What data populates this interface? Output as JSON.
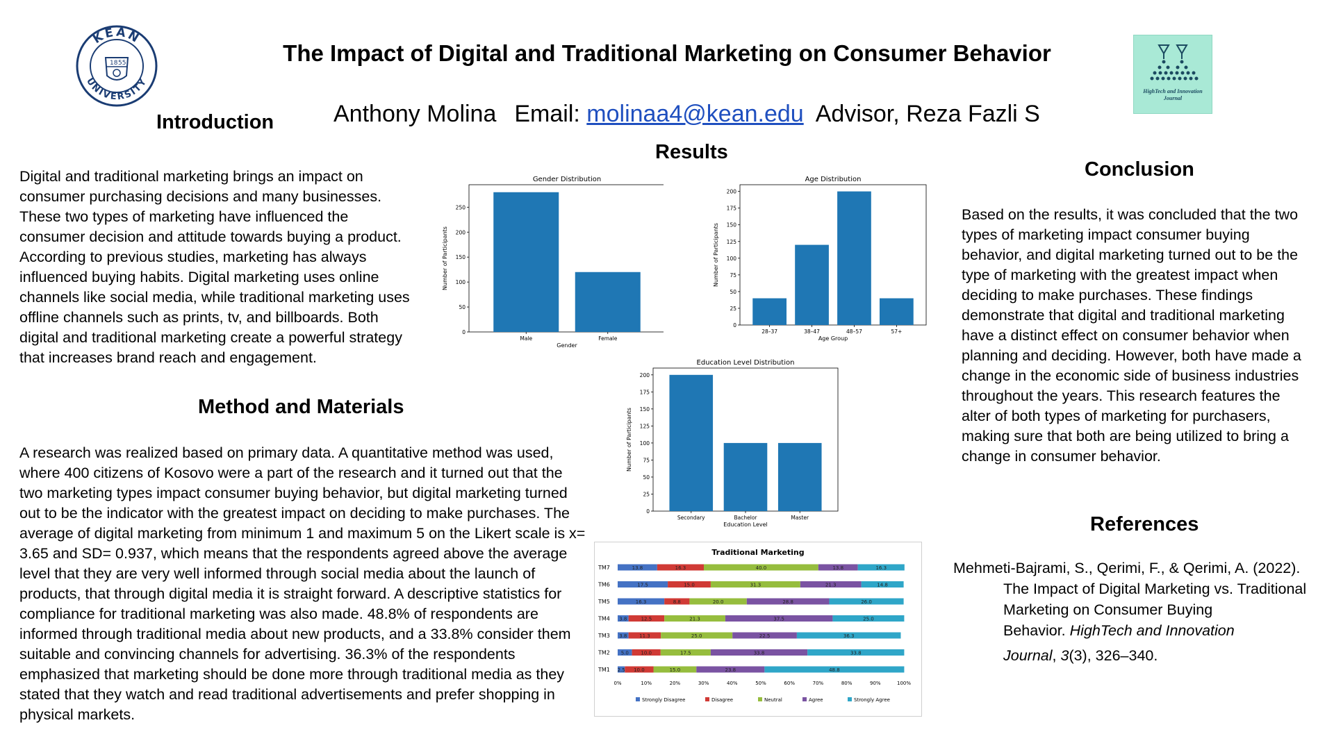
{
  "poster": {
    "title": "The Impact of Digital and Traditional Marketing on Consumer Behavior",
    "author_name": "Anthony Molina",
    "email_label": "Email:",
    "email": "molinaa4@kean.edu",
    "advisor": "Advisor, Reza Fazli S"
  },
  "logos": {
    "left_text_top": "KEAN",
    "left_text_bottom": "UNIVERSITY",
    "left_year_a": "18",
    "left_year_b": "55",
    "right_text": "HighTech and Innovation Journal"
  },
  "introduction": {
    "heading": "Introduction",
    "text": "Digital and traditional marketing brings an impact on consumer purchasing decisions and many businesses. These two types of marketing have influenced the consumer decision and attitude towards buying a product. According to previous studies, marketing has always influenced buying habits. Digital marketing uses online channels like social media, while traditional marketing uses offline channels such as prints, tv, and billboards. Both digital and traditional marketing create a powerful strategy that increases brand reach and engagement."
  },
  "methods": {
    "heading": "Method and Materials",
    "text": "A research was realized based on primary data. A quantitative method was used, where 400 citizens of Kosovo were a part of the research and it turned out that the two marketing types impact consumer buying behavior, but digital marketing turned out to be the indicator with the greatest impact on deciding to make purchases. The average of digital marketing from minimum 1 and maximum 5  on the Likert scale is x= 3.65 and SD= 0.937, which means that the respondents agreed above the average level that they are very well informed through social media about the launch of products, that through digital media it is straight forward. A descriptive statistics for compliance for traditional marketing was also made. 48.8% of respondents are informed through traditional media about new products, and a 33.8% consider them suitable and convincing channels for advertising. 36.3% of the respondents emphasized that marketing should be done more through traditional media as they stated that they watch and read traditional advertisements and prefer shopping in physical markets."
  },
  "results": {
    "heading": "Results"
  },
  "conclusion": {
    "heading": "Conclusion",
    "text": "Based on the results, it was concluded that the two types of marketing impact consumer buying behavior, and digital marketing turned out to be the type of marketing with the greatest impact when deciding to make purchases. These findings demonstrate that digital and traditional marketing have a distinct effect on consumer behavior when planning and deciding. However, both have made a change in the economic side of business industries throughout the years. This research features the alter of both types of marketing for purchasers, making sure that both are being utilized to bring a change in consumer behavior."
  },
  "references": {
    "heading": "References",
    "line1": "Mehmeti-Bajrami, S., Qerimi, F., & Qerimi, A. (2022).",
    "line2": "The Impact of Digital Marketing vs. Traditional",
    "line3": "Marketing on Consumer Buying",
    "line4_plain": "Behavior.",
    "line4_italic": "HighTech and Innovation",
    "line5_italic": "Journal",
    "line5_a": ", ",
    "line5_vol": "3",
    "line5_b": "(3), 326–340."
  },
  "chart_data": [
    {
      "type": "bar",
      "title": "Gender Distribution",
      "xlabel": "Gender",
      "ylabel": "Number of Participants",
      "categories": [
        "Male",
        "Female"
      ],
      "values": [
        280,
        120
      ],
      "ylim": [
        0,
        295
      ],
      "yticks": [
        0,
        50,
        100,
        150,
        200,
        250
      ],
      "color": "#1f77b4"
    },
    {
      "type": "bar",
      "title": "Age Distribution",
      "xlabel": "Age Group",
      "ylabel": "Number of Participants",
      "categories": [
        "28–37",
        "38–47",
        "48–57",
        "57+"
      ],
      "values": [
        40,
        120,
        200,
        40
      ],
      "ylim": [
        0,
        210
      ],
      "yticks": [
        0,
        25,
        50,
        75,
        100,
        125,
        150,
        175,
        200
      ],
      "color": "#1f77b4"
    },
    {
      "type": "bar",
      "title": "Education Level Distribution",
      "xlabel": "Education Level",
      "ylabel": "Number of Participants",
      "categories": [
        "Secondary",
        "Bachelor",
        "Master"
      ],
      "values": [
        200,
        100,
        100
      ],
      "ylim": [
        0,
        210
      ],
      "yticks": [
        0,
        25,
        50,
        75,
        100,
        125,
        150,
        175,
        200
      ],
      "color": "#1f77b4"
    },
    {
      "type": "bar",
      "stacked": "percent",
      "orientation": "horizontal",
      "title": "Traditional Marketing",
      "categories": [
        "TM7",
        "TM6",
        "TM5",
        "TM4",
        "TM3",
        "TM2",
        "TM1"
      ],
      "xticks": [
        "0%",
        "10%",
        "20%",
        "30%",
        "40%",
        "50%",
        "60%",
        "70%",
        "80%",
        "90%",
        "100%"
      ],
      "legend": "bottom",
      "series": [
        {
          "name": "Strongly Disagree",
          "color": "#4472c4",
          "values": [
            13.8,
            17.5,
            16.3,
            3.8,
            3.8,
            5.0,
            2.5
          ]
        },
        {
          "name": "Disagree",
          "color": "#d03a35",
          "values": [
            16.3,
            15.0,
            8.8,
            12.5,
            11.3,
            10.0,
            10.0
          ]
        },
        {
          "name": "Neutral",
          "color": "#96bd3e",
          "values": [
            40.0,
            31.3,
            20.0,
            21.3,
            25.0,
            17.5,
            15.0
          ]
        },
        {
          "name": "Agree",
          "color": "#7a53a2",
          "values": [
            13.8,
            21.3,
            28.8,
            37.5,
            22.5,
            33.8,
            23.8
          ]
        },
        {
          "name": "Strongly Agree",
          "color": "#2fa6c8",
          "values": [
            16.3,
            14.8,
            26.0,
            25.0,
            36.3,
            33.8,
            48.8
          ]
        }
      ]
    }
  ]
}
